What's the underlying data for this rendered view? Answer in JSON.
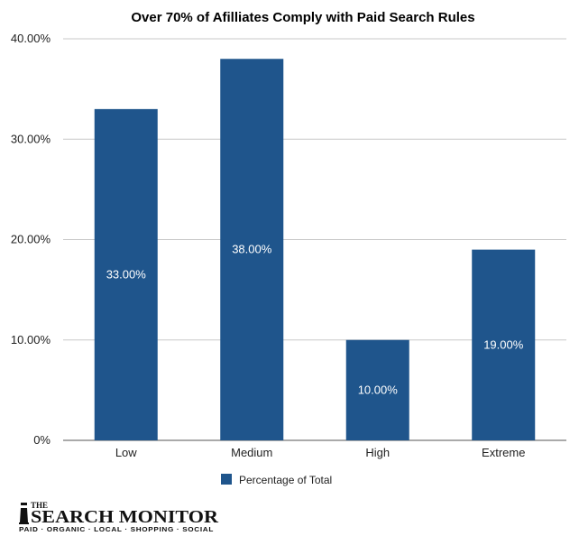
{
  "chart_data": {
    "type": "bar",
    "title": "Over 70% of Afilliates Comply with Paid Search Rules",
    "categories": [
      "Low",
      "Medium",
      "High",
      "Extreme"
    ],
    "series": [
      {
        "name": "Percentage of Total",
        "values": [
          33,
          38,
          10,
          19
        ]
      }
    ],
    "data_labels": [
      "33.00%",
      "38.00%",
      "10.00%",
      "19.00%"
    ],
    "y_ticks": [
      "0%",
      "10.00%",
      "20.00%",
      "30.00%",
      "40.00%"
    ],
    "ylim": [
      0,
      40
    ],
    "xlabel": "",
    "ylabel": "",
    "grid": true,
    "legend_position": "bottom",
    "colors": {
      "bar": "#1f558c",
      "grid": "#c8c8c8",
      "axis": "#555555"
    }
  },
  "logo": {
    "the": "THE",
    "name": "SEARCH MONITOR",
    "tagline": "PAID · ORGANIC · LOCAL · SHOPPING · SOCIAL"
  }
}
